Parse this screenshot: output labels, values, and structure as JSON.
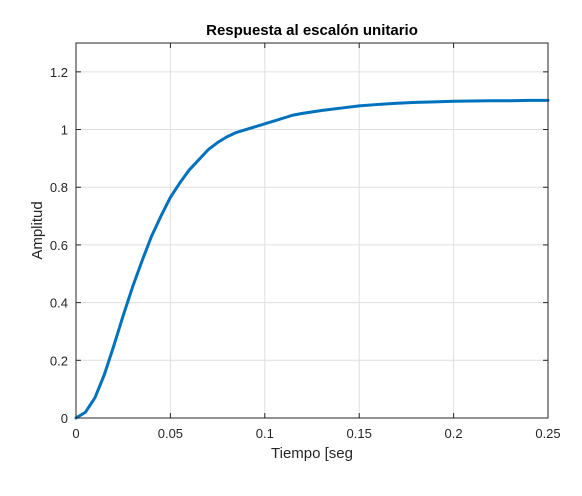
{
  "chart_data": {
    "type": "line",
    "title": "Respuesta al escalón unitario",
    "xlabel": "Tiempo [seg",
    "ylabel": "Amplitud",
    "xlim": [
      0,
      0.25
    ],
    "ylim": [
      0,
      1.3
    ],
    "xticks": [
      0,
      0.05,
      0.1,
      0.15,
      0.2,
      0.25
    ],
    "xtick_labels": [
      "0",
      "0.05",
      "0.1",
      "0.15",
      "0.2",
      "0.25"
    ],
    "yticks": [
      0,
      0.2,
      0.4,
      0.6,
      0.8,
      1,
      1.2
    ],
    "ytick_labels": [
      "0",
      "0.2",
      "0.4",
      "0.6",
      "0.8",
      "1",
      "1.2"
    ],
    "grid": true,
    "line_color": "#0072BD",
    "series": [
      {
        "x": [
          0,
          0.005,
          0.01,
          0.015,
          0.02,
          0.025,
          0.03,
          0.035,
          0.04,
          0.045,
          0.05,
          0.055,
          0.06,
          0.065,
          0.07,
          0.075,
          0.08,
          0.085,
          0.09,
          0.095,
          0.1,
          0.105,
          0.11,
          0.115,
          0.12,
          0.13,
          0.14,
          0.15,
          0.16,
          0.17,
          0.18,
          0.19,
          0.2,
          0.21,
          0.22,
          0.23,
          0.24,
          0.25
        ],
        "values": [
          0,
          0.02,
          0.07,
          0.15,
          0.25,
          0.355,
          0.455,
          0.545,
          0.63,
          0.7,
          0.765,
          0.815,
          0.86,
          0.895,
          0.93,
          0.955,
          0.975,
          0.99,
          1.0,
          1.01,
          1.02,
          1.03,
          1.04,
          1.05,
          1.056,
          1.066,
          1.074,
          1.082,
          1.087,
          1.091,
          1.094,
          1.096,
          1.098,
          1.099,
          1.1,
          1.1,
          1.101,
          1.101
        ]
      }
    ]
  }
}
